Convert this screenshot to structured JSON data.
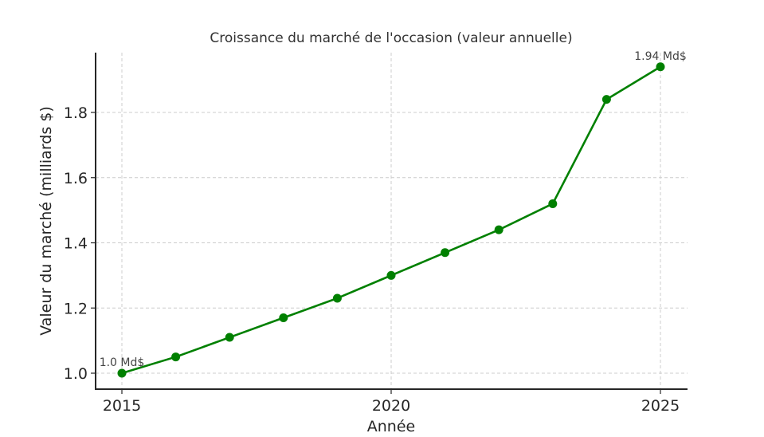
{
  "chart_data": {
    "type": "line",
    "title": "Croissance du marché de l'occasion (valeur annuelle)",
    "xlabel": "Année",
    "ylabel": "Valeur du marché (milliards $)",
    "x": [
      2015,
      2016,
      2017,
      2018,
      2019,
      2020,
      2021,
      2022,
      2023,
      2024,
      2025
    ],
    "series": [
      {
        "name": "Valeur du marché",
        "values": [
          1.0,
          1.05,
          1.11,
          1.17,
          1.23,
          1.3,
          1.37,
          1.44,
          1.52,
          1.84,
          1.94
        ],
        "color": "#008000",
        "marker": "circle"
      }
    ],
    "xticks": [
      2015,
      2020,
      2025
    ],
    "xtick_labels": [
      "2015",
      "2020",
      "2025"
    ],
    "yticks": [
      1.0,
      1.2,
      1.4,
      1.6,
      1.8
    ],
    "ytick_labels": [
      "1.0",
      "1.2",
      "1.4",
      "1.6",
      "1.8"
    ],
    "xlim": [
      2014.5,
      2025.5
    ],
    "ylim": [
      0.95,
      1.985
    ],
    "grid": true,
    "legend": null,
    "annotations": [
      {
        "text": "1.0 Md$",
        "x": 2015,
        "y": 1.0
      },
      {
        "text": "1.94 Md$",
        "x": 2025,
        "y": 1.94
      }
    ]
  },
  "colors": {
    "line": "#008000",
    "grid": "#cccccc",
    "axis": "#262626"
  }
}
